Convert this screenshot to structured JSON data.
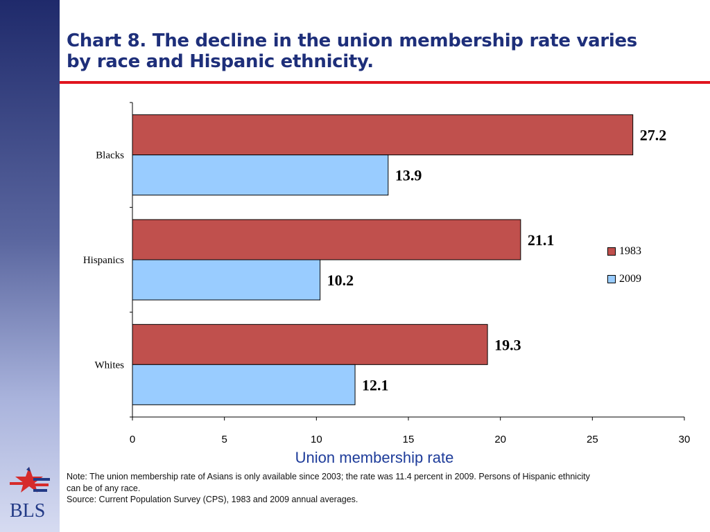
{
  "title": {
    "line1": "Chart 8.  The decline in the union membership rate varies",
    "line2": "by race and Hispanic ethnicity."
  },
  "colors": {
    "accent_red": "#e0141e",
    "title_blue": "#1e2f7a",
    "axis_title_blue": "#1e3c9a",
    "bar_1983": "#c0504d",
    "bar_2009": "#99ccff"
  },
  "chart_data": {
    "type": "bar",
    "orientation": "horizontal",
    "categories": [
      "Blacks",
      "Hispanics",
      "Whites"
    ],
    "series": [
      {
        "name": "1983",
        "values": [
          27.2,
          21.1,
          19.3
        ],
        "color": "#c0504d"
      },
      {
        "name": "2009",
        "values": [
          13.9,
          10.2,
          12.1
        ],
        "color": "#99ccff"
      }
    ],
    "value_labels": {
      "1983": [
        "27.2",
        "21.1",
        "19.3"
      ],
      "2009": [
        "13.9",
        "10.2",
        "12.1"
      ]
    },
    "xlabel": "Union membership rate",
    "ylabel": "",
    "xlim": [
      0,
      30
    ],
    "xticks": [
      "0",
      "5",
      "10",
      "15",
      "20",
      "25",
      "30"
    ],
    "grid": false,
    "legend_position": "right"
  },
  "notes": {
    "line1": "Note: The union membership rate of Asians is only available since 2003; the rate was 11.4 percent in 2009.  Persons of Hispanic ethnicity",
    "line2": "can be of any race.",
    "source": "Source: Current Population Survey (CPS), 1983 and 2009 annual averages."
  },
  "logo": {
    "text": "BLS",
    "icon": "star-flag-icon"
  }
}
